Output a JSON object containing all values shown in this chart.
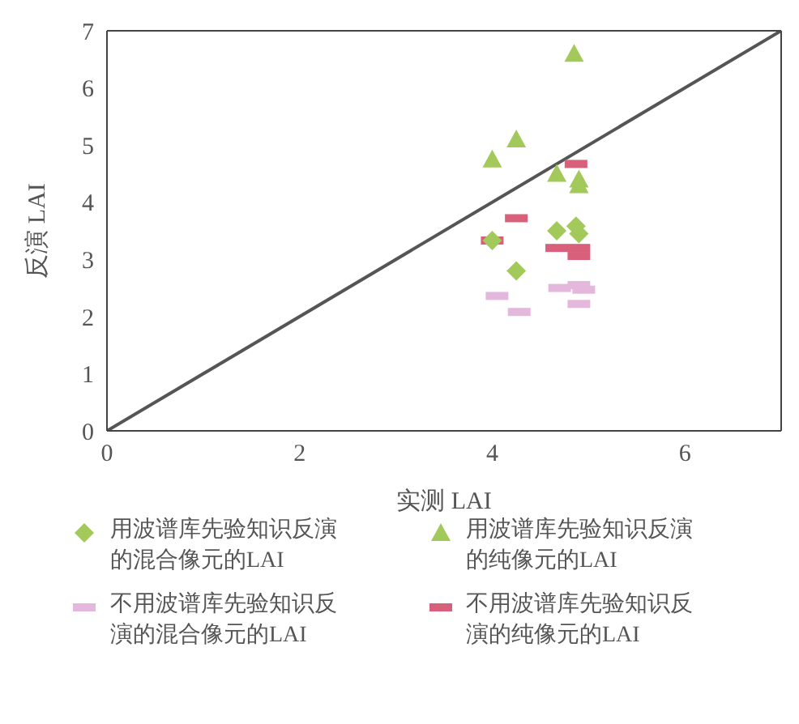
{
  "chart_data": {
    "type": "scatter",
    "xlabel": "实测 LAI",
    "ylabel": "反演 LAI",
    "xlim": [
      0,
      7
    ],
    "ylim": [
      0,
      7
    ],
    "xticks": [
      0,
      2,
      4,
      6
    ],
    "yticks": [
      0,
      1,
      2,
      3,
      4,
      5,
      6,
      7
    ],
    "legend": "bottom",
    "series": [
      {
        "name": "用波谱库先验知识反演的混合像元的LAI",
        "color": "#a2c95a",
        "marker": "diamond",
        "x": [
          4.67,
          4.87,
          4.9,
          4.0,
          4.25
        ],
        "values": [
          3.5,
          3.58,
          3.45,
          3.33,
          2.8
        ]
      },
      {
        "name": "用波谱库先验知识反演的纯像元的LAI",
        "color": "#a2c95a",
        "marker": "triangle",
        "x": [
          4.85,
          4.25,
          4.0,
          4.67,
          4.9,
          4.9
        ],
        "values": [
          6.6,
          5.1,
          4.75,
          4.5,
          4.4,
          4.3
        ]
      },
      {
        "name": "不用波谱库先验知识反演的混合像元的LAI",
        "color": "#e3b8dc",
        "x": [
          4.05,
          4.28,
          4.7,
          4.9,
          4.95,
          4.9
        ],
        "values": [
          2.36,
          2.08,
          2.5,
          2.55,
          2.47,
          2.22
        ]
      },
      {
        "name": "不用波谱库先验知识反演的纯像元的LAI",
        "color": "#d8607a",
        "x": [
          4.87,
          4.25,
          4.0,
          4.67,
          4.9,
          4.9
        ],
        "values": [
          4.67,
          3.72,
          3.33,
          3.2,
          3.2,
          3.06
        ]
      },
      {
        "type": "line",
        "color": "#555555",
        "marker": "none",
        "x": [
          0,
          7
        ],
        "values": [
          0,
          7
        ]
      }
    ]
  }
}
